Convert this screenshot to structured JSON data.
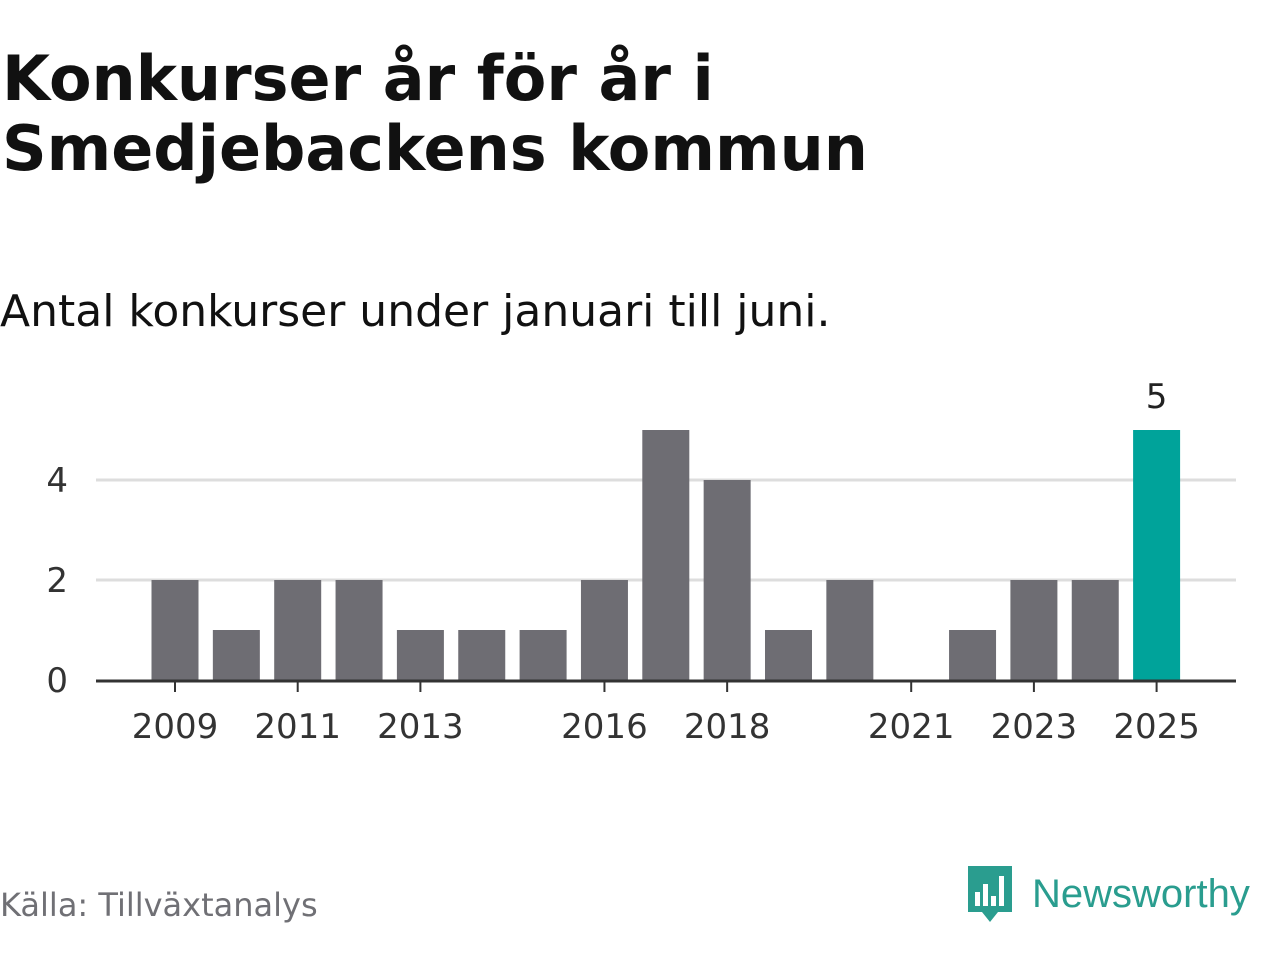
{
  "title": "Konkurser år för år i Smedjebackens kommun",
  "subtitle": "Antal konkurser under januari till juni.",
  "source": "Källa: Tillväxtanalys",
  "brand": {
    "name": "Newsworthy",
    "logo_icon": "bar-chart-speech-bubble-icon"
  },
  "colors": {
    "bar": "#6e6d73",
    "highlight": "#00a39a",
    "grid": "#dddddd",
    "axis": "#333333",
    "brand": "#2a9d8f"
  },
  "chart_data": {
    "type": "bar",
    "categories": [
      "2009",
      "2010",
      "2011",
      "2012",
      "2013",
      "2014",
      "2015",
      "2016",
      "2017",
      "2018",
      "2019",
      "2020",
      "2021",
      "2022",
      "2023",
      "2024",
      "2025"
    ],
    "values": [
      2,
      1,
      2,
      2,
      1,
      1,
      1,
      2,
      5,
      4,
      1,
      2,
      0,
      1,
      2,
      2,
      5
    ],
    "x_tick_labels": [
      "2009",
      "2011",
      "2013",
      "2016",
      "2018",
      "2021",
      "2023",
      "2025"
    ],
    "y_ticks": [
      0,
      2,
      4
    ],
    "ylim": [
      0,
      5
    ],
    "highlight": {
      "category": "2025",
      "label": "5"
    },
    "grid": true
  }
}
